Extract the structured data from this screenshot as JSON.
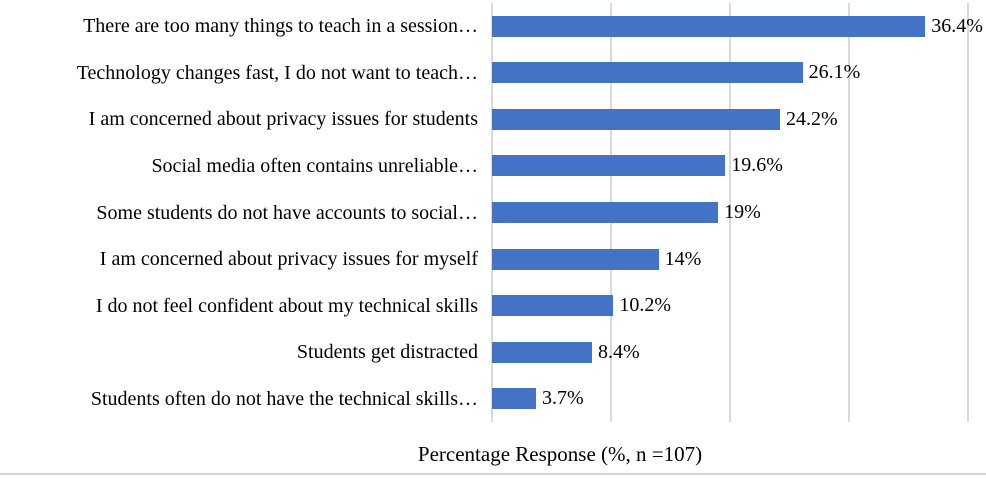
{
  "chart_data": {
    "type": "bar",
    "orientation": "horizontal",
    "title": "",
    "xlabel": "Percentage Response (%, n =107)",
    "ylabel": "",
    "xlim": [
      0,
      40
    ],
    "gridlines": [
      0,
      10,
      20,
      30,
      40
    ],
    "grid": "vertical-only",
    "legend": "none",
    "bar_color": "#4472C4",
    "gridline_color": "#D9D9D9",
    "categories": [
      "There are too many things to teach in a session…",
      "Technology changes fast, I do not want to teach…",
      "I am concerned about privacy issues for students",
      "Social media often contains unreliable…",
      "Some students do not have accounts to social…",
      "I am concerned about privacy issues for myself",
      "I do not feel confident about my technical skills",
      "Students get distracted",
      "Students often do not have the technical skills…"
    ],
    "values": [
      36.4,
      26.1,
      24.2,
      19.6,
      19,
      14,
      10.2,
      8.4,
      3.7
    ],
    "value_labels": [
      "36.4%",
      "26.1%",
      "24.2%",
      "19.6%",
      "19%",
      "14%",
      "10.2%",
      "8.4%",
      "3.7%"
    ]
  }
}
